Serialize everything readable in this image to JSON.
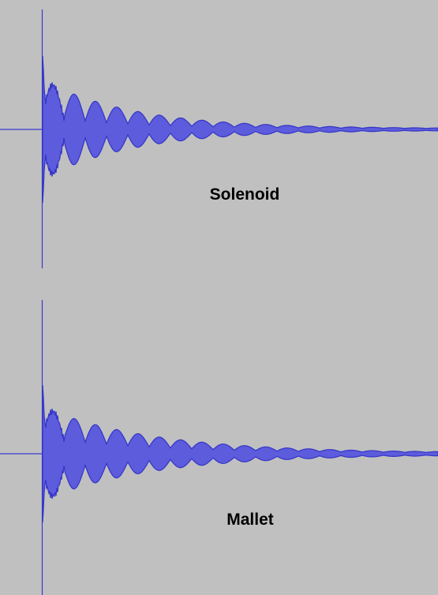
{
  "labels": [
    "Solenoid",
    "Mallet"
  ]
}
